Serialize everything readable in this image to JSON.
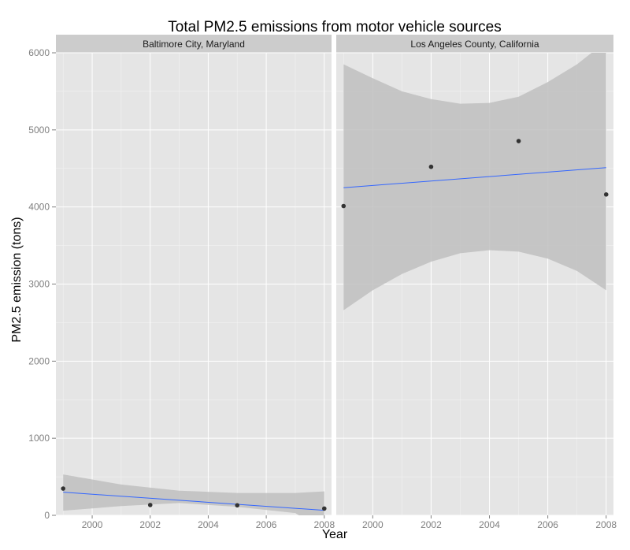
{
  "chart_data": {
    "type": "scatter",
    "title": "Total PM2.5 emissions from motor vehicle sources",
    "xlabel": "Year",
    "ylabel": "PM2.5 emission (tons)",
    "xlim": [
      1998.75,
      2008.25
    ],
    "ylim": [
      0,
      6000
    ],
    "x_ticks": [
      2000,
      2002,
      2004,
      2006,
      2008
    ],
    "y_ticks": [
      0,
      1000,
      2000,
      3000,
      4000,
      5000,
      6000
    ],
    "grid": true,
    "colors": {
      "panel_bg": "#e5e5e5",
      "grid_major": "#ffffff",
      "strip_bg": "#cccccc",
      "point": "#333333",
      "fit_line": "#3366ff",
      "ribbon": "#bfbfbf"
    },
    "facets": [
      {
        "label": "Baltimore City, Maryland",
        "points": [
          {
            "x": 1999,
            "y": 347
          },
          {
            "x": 2002,
            "y": 134
          },
          {
            "x": 2005,
            "y": 130
          },
          {
            "x": 2008,
            "y": 88
          }
        ],
        "fit": {
          "x": [
            1999,
            2008
          ],
          "y": [
            300,
            65
          ]
        },
        "ribbon": {
          "x": [
            1999,
            2001,
            2003,
            2005,
            2007,
            2008
          ],
          "lower": [
            60,
            120,
            160,
            110,
            30,
            -210
          ],
          "upper": [
            530,
            400,
            320,
            290,
            290,
            310
          ]
        }
      },
      {
        "label": "Los Angeles County, California",
        "points": [
          {
            "x": 1999,
            "y": 4012
          },
          {
            "x": 2002,
            "y": 4521
          },
          {
            "x": 2005,
            "y": 4855
          },
          {
            "x": 2008,
            "y": 4162
          }
        ],
        "fit": {
          "x": [
            1999,
            2008
          ],
          "y": [
            4250,
            4510
          ]
        },
        "ribbon": {
          "x": [
            1999,
            2000,
            2001,
            2002,
            2003,
            2004,
            2005,
            2006,
            2007,
            2008
          ],
          "lower": [
            2660,
            2920,
            3130,
            3290,
            3400,
            3440,
            3420,
            3330,
            3170,
            2920
          ],
          "upper": [
            5850,
            5670,
            5500,
            5400,
            5340,
            5350,
            5430,
            5620,
            5850,
            6150
          ]
        }
      }
    ]
  }
}
